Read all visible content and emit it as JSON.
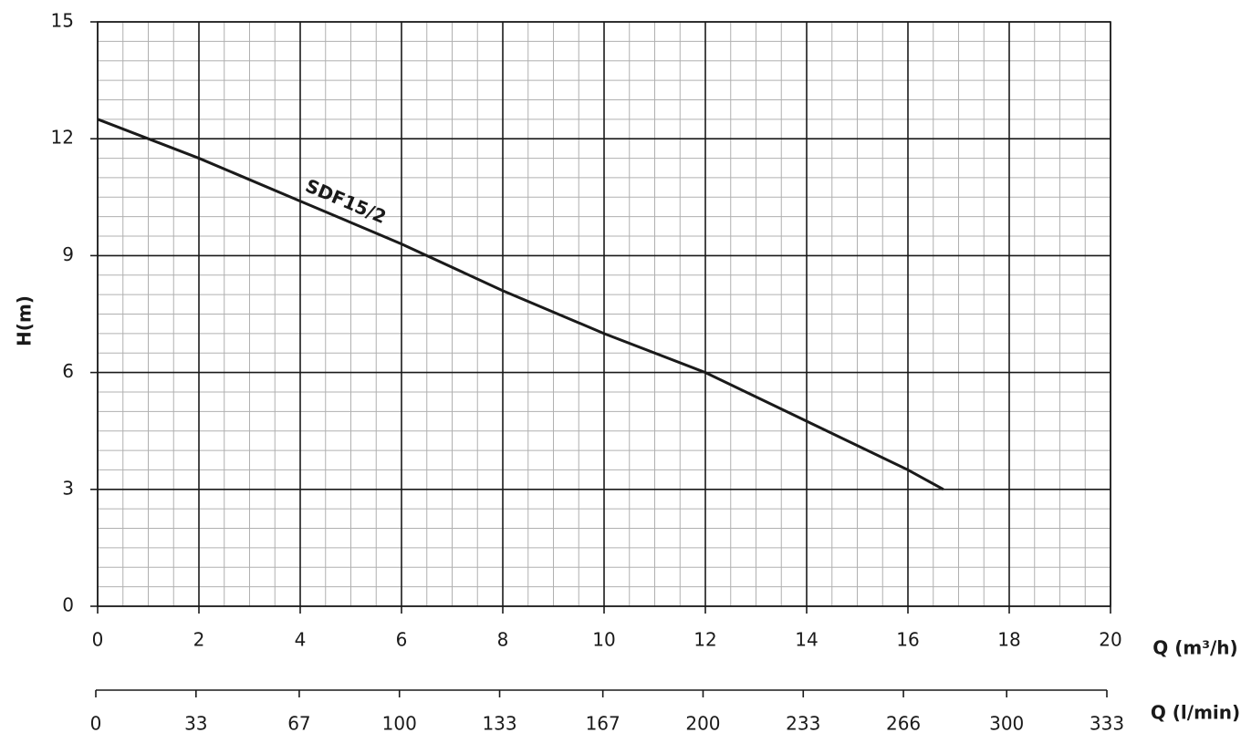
{
  "chart_data": {
    "type": "line",
    "x": [
      0,
      2,
      4,
      6,
      8,
      10,
      12,
      14,
      16,
      16.7
    ],
    "series": [
      {
        "name": "SDF15/2",
        "color": "#1a1a1a",
        "values": [
          12.5,
          11.5,
          10.4,
          9.3,
          8.1,
          7.0,
          6.0,
          4.75,
          3.5,
          3.0
        ]
      }
    ],
    "xlim": [
      0,
      20
    ],
    "xticks": [
      0,
      2,
      4,
      6,
      8,
      10,
      12,
      14,
      16,
      18,
      20
    ],
    "ylim": [
      0,
      15
    ],
    "yticks": [
      0,
      3,
      6,
      9,
      12,
      15
    ],
    "x2lim": [
      0,
      333
    ],
    "x2ticks": [
      0,
      33,
      67,
      100,
      133,
      167,
      200,
      233,
      266,
      300,
      333
    ],
    "xlabel": "Q (m³/h)",
    "x2label": "Q (l/min)",
    "ylabel": "H(m)",
    "grid": true,
    "minor_grid": true
  }
}
